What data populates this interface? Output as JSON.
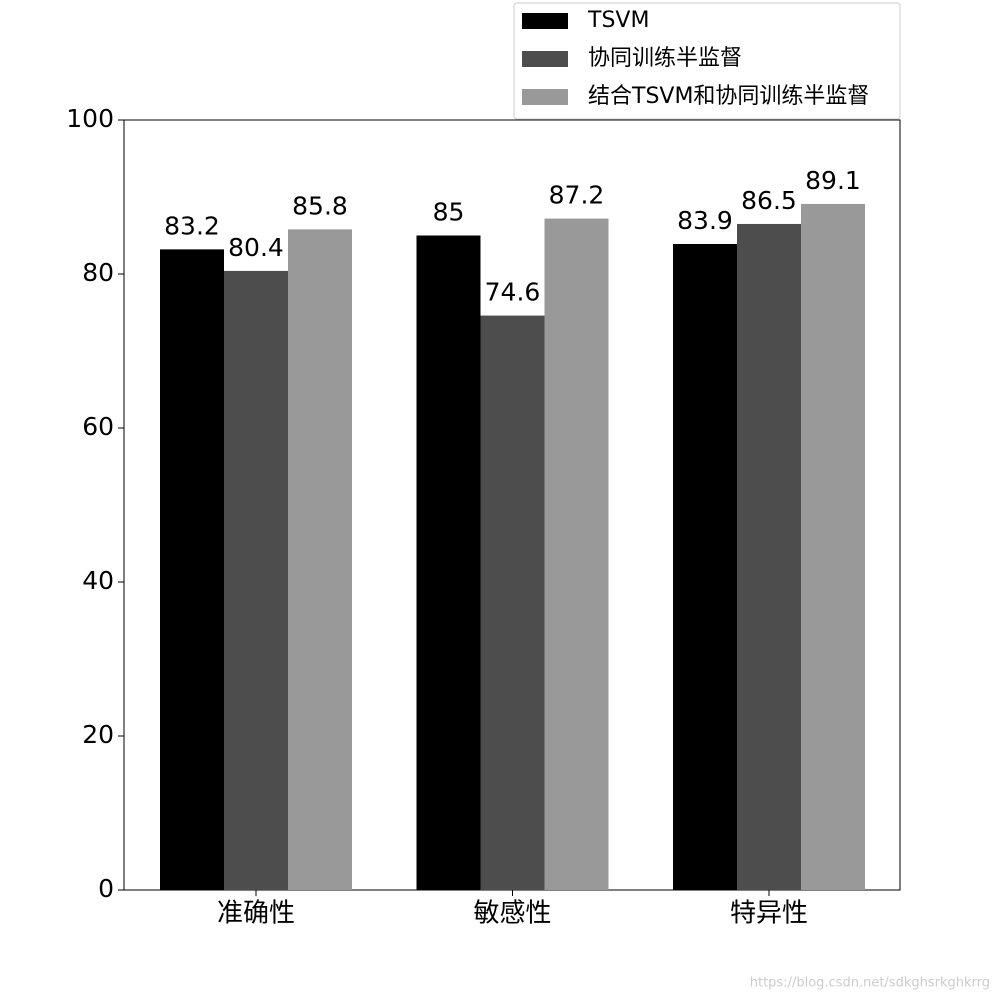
{
  "chart_data": {
    "type": "bar",
    "categories": [
      "准确性",
      "敏感性",
      "特异性"
    ],
    "series": [
      {
        "name": "TSVM",
        "color": "#000000",
        "values": [
          83.2,
          85,
          83.9
        ]
      },
      {
        "name": "协同训练半监督",
        "color": "#4d4d4d",
        "values": [
          80.4,
          74.6,
          86.5
        ]
      },
      {
        "name": "结合TSVM和协同训练半监督",
        "color": "#999999",
        "values": [
          85.8,
          87.2,
          89.1
        ]
      }
    ],
    "ylim": [
      0,
      100
    ],
    "yticks": [
      0,
      20,
      40,
      60,
      80,
      100
    ],
    "legend": "upper right",
    "watermark": "https://blog.csdn.net/sdkghsrkghkrrg"
  }
}
